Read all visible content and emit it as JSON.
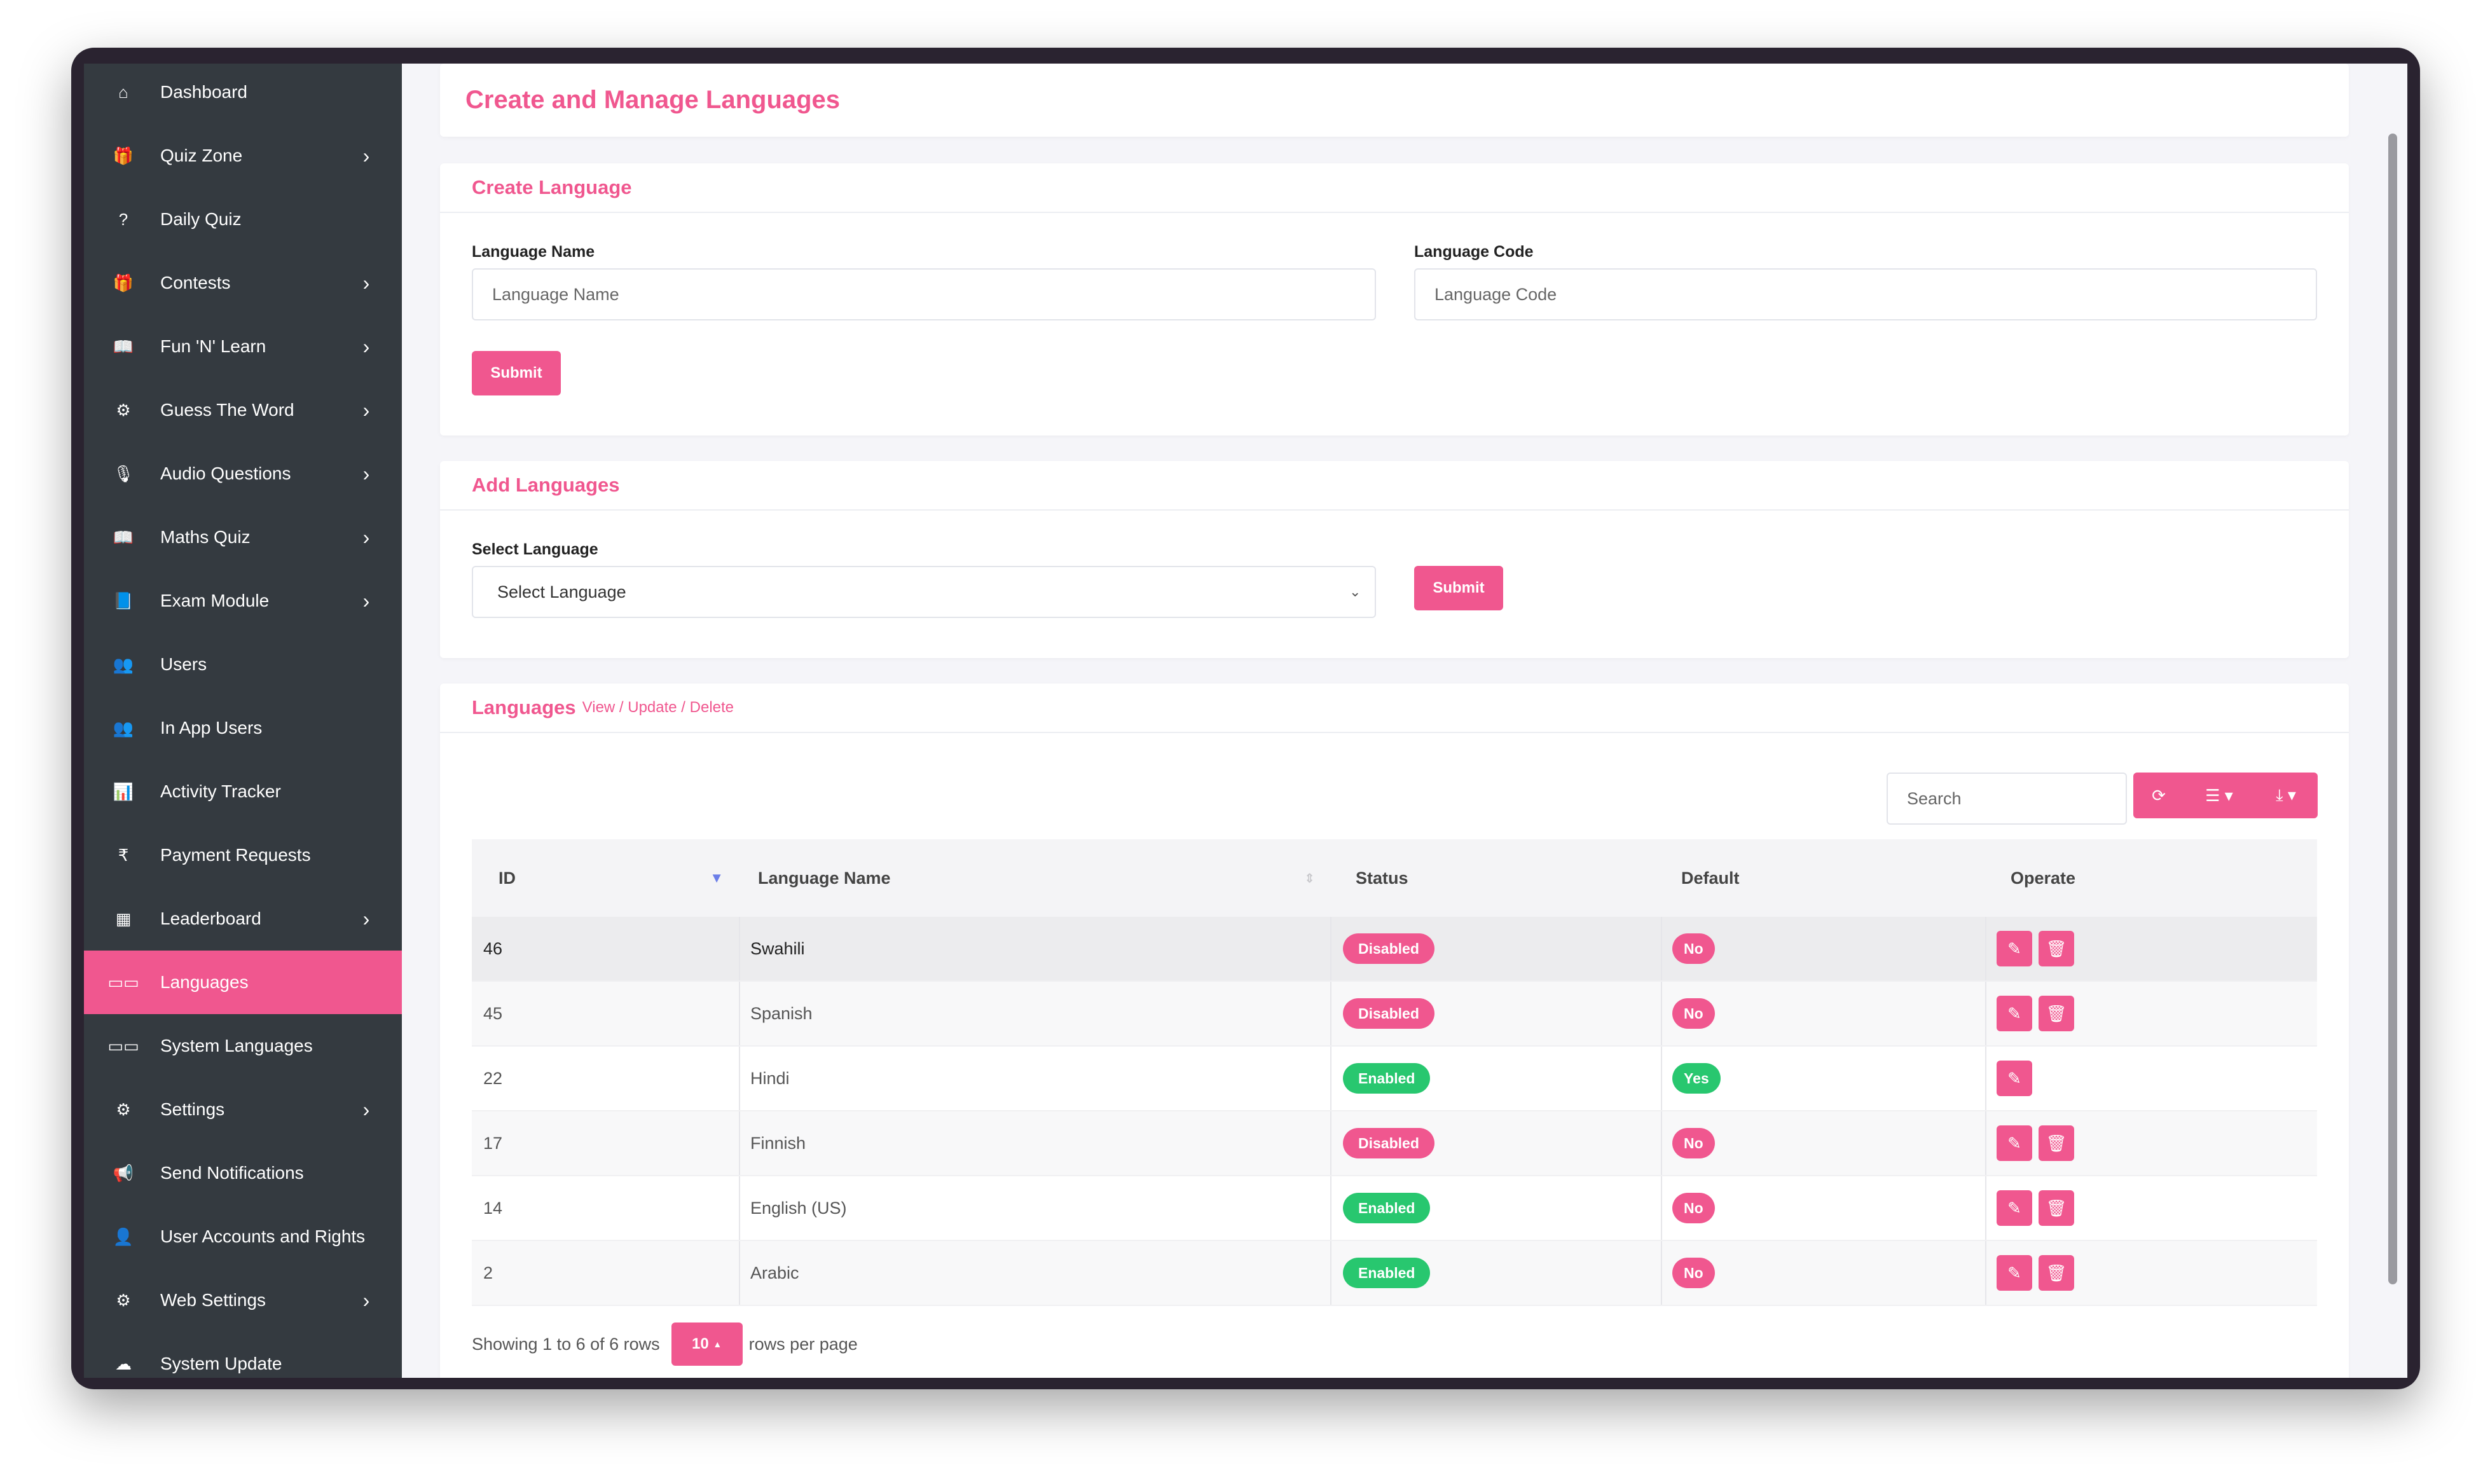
{
  "sidebar": {
    "items": [
      {
        "label": "Dashboard",
        "icon": "home-icon",
        "glyph": "⌂",
        "has_submenu": false,
        "active": false
      },
      {
        "label": "Quiz Zone",
        "icon": "gift-icon",
        "glyph": "🎁",
        "has_submenu": true,
        "active": false
      },
      {
        "label": "Daily Quiz",
        "icon": "question-icon",
        "glyph": "?",
        "has_submenu": false,
        "active": false
      },
      {
        "label": "Contests",
        "icon": "gift-icon",
        "glyph": "🎁",
        "has_submenu": true,
        "active": false
      },
      {
        "label": "Fun 'N' Learn",
        "icon": "book-icon",
        "glyph": "📖",
        "has_submenu": true,
        "active": false
      },
      {
        "label": "Guess The Word",
        "icon": "cog-icon",
        "glyph": "⚙",
        "has_submenu": true,
        "active": false
      },
      {
        "label": "Audio Questions",
        "icon": "microphone-icon",
        "glyph": "🎙",
        "has_submenu": true,
        "active": false
      },
      {
        "label": "Maths Quiz",
        "icon": "book-icon",
        "glyph": "📖",
        "has_submenu": true,
        "active": false
      },
      {
        "label": "Exam Module",
        "icon": "book-closed-icon",
        "glyph": "📘",
        "has_submenu": true,
        "active": false
      },
      {
        "label": "Users",
        "icon": "users-icon",
        "glyph": "👥",
        "has_submenu": false,
        "active": false
      },
      {
        "label": "In App Users",
        "icon": "users-icon",
        "glyph": "👥",
        "has_submenu": false,
        "active": false
      },
      {
        "label": "Activity Tracker",
        "icon": "chart-icon",
        "glyph": "📊",
        "has_submenu": false,
        "active": false
      },
      {
        "label": "Payment Requests",
        "icon": "rupee-icon",
        "glyph": "₹",
        "has_submenu": false,
        "active": false
      },
      {
        "label": "Leaderboard",
        "icon": "grid-icon",
        "glyph": "▦",
        "has_submenu": true,
        "active": false
      },
      {
        "label": "Languages",
        "icon": "language-icon",
        "glyph": "▭▭",
        "has_submenu": false,
        "active": true
      },
      {
        "label": "System Languages",
        "icon": "language-icon",
        "glyph": "▭▭",
        "has_submenu": false,
        "active": false
      },
      {
        "label": "Settings",
        "icon": "gear-icon",
        "glyph": "⚙",
        "has_submenu": true,
        "active": false
      },
      {
        "label": "Send Notifications",
        "icon": "bullhorn-icon",
        "glyph": "📢",
        "has_submenu": false,
        "active": false
      },
      {
        "label": "User Accounts and Rights",
        "icon": "user-icon",
        "glyph": "👤",
        "has_submenu": false,
        "active": false
      },
      {
        "label": "Web Settings",
        "icon": "gear-icon",
        "glyph": "⚙",
        "has_submenu": true,
        "active": false
      },
      {
        "label": "System Update",
        "icon": "cloud-upload-icon",
        "glyph": "☁",
        "has_submenu": false,
        "active": false
      }
    ]
  },
  "page": {
    "title": "Create and Manage Languages"
  },
  "create_language": {
    "heading": "Create Language",
    "name_label": "Language Name",
    "name_placeholder": "Language Name",
    "code_label": "Language Code",
    "code_placeholder": "Language Code",
    "submit_label": "Submit"
  },
  "add_languages": {
    "heading": "Add Languages",
    "select_label": "Select Language",
    "select_value": "Select Language",
    "submit_label": "Submit"
  },
  "languages_table": {
    "heading": "Languages",
    "subheading": "View / Update / Delete",
    "search_placeholder": "Search",
    "columns": [
      "ID",
      "Language Name",
      "Status",
      "Default",
      "Operate"
    ],
    "rows": [
      {
        "id": "46",
        "name": "Swahili",
        "status": "Disabled",
        "default": "No",
        "can_delete": true
      },
      {
        "id": "45",
        "name": "Spanish",
        "status": "Disabled",
        "default": "No",
        "can_delete": true
      },
      {
        "id": "22",
        "name": "Hindi",
        "status": "Enabled",
        "default": "Yes",
        "can_delete": false
      },
      {
        "id": "17",
        "name": "Finnish",
        "status": "Disabled",
        "default": "No",
        "can_delete": true
      },
      {
        "id": "14",
        "name": "English (US)",
        "status": "Enabled",
        "default": "No",
        "can_delete": true
      },
      {
        "id": "2",
        "name": "Arabic",
        "status": "Enabled",
        "default": "No",
        "can_delete": true
      }
    ],
    "footer_text": "Showing 1 to 6 of 6 rows",
    "page_size": "10",
    "rows_per_page_label": "rows per page"
  },
  "colors": {
    "accent": "#f0578f",
    "sidebar_bg": "#343a40",
    "enabled": "#28c76f",
    "disabled": "#f0578f"
  }
}
